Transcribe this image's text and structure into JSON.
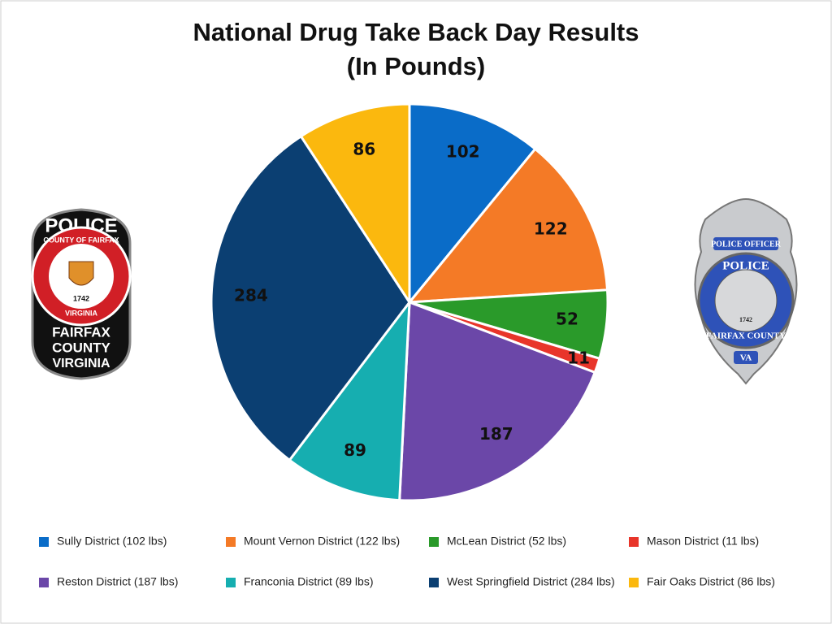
{
  "chart_data": {
    "type": "pie",
    "title": "National Drug Take Back Day Results",
    "subtitle": "(In Pounds)",
    "categories": [
      "Sully District (102 lbs)",
      "Mount Vernon District (122 lbs)",
      "McLean District (52 lbs)",
      "Mason District (11 lbs)",
      "Reston District (187 lbs)",
      "Franconia District (89 lbs)",
      "West Springfield District (284 lbs)",
      "Fair Oaks District (86 lbs)"
    ],
    "values": [
      102,
      122,
      52,
      11,
      187,
      89,
      284,
      86
    ],
    "colors": [
      "#0a6cc8",
      "#f47a26",
      "#2a9a2a",
      "#e8352a",
      "#6b47a8",
      "#16aeb0",
      "#0b3f72",
      "#fbb80e"
    ],
    "legend": "bottom"
  },
  "logos": {
    "left": [
      "POLICE",
      "COUNTY OF FAIRFAX",
      "1742",
      "VIRGINIA",
      "FAIRFAX",
      "COUNTY",
      "VIRGINIA"
    ],
    "right": [
      "POLICE OFFICER",
      "POLICE",
      "1742",
      "FAIRFAX COUNTY",
      "VA"
    ]
  }
}
